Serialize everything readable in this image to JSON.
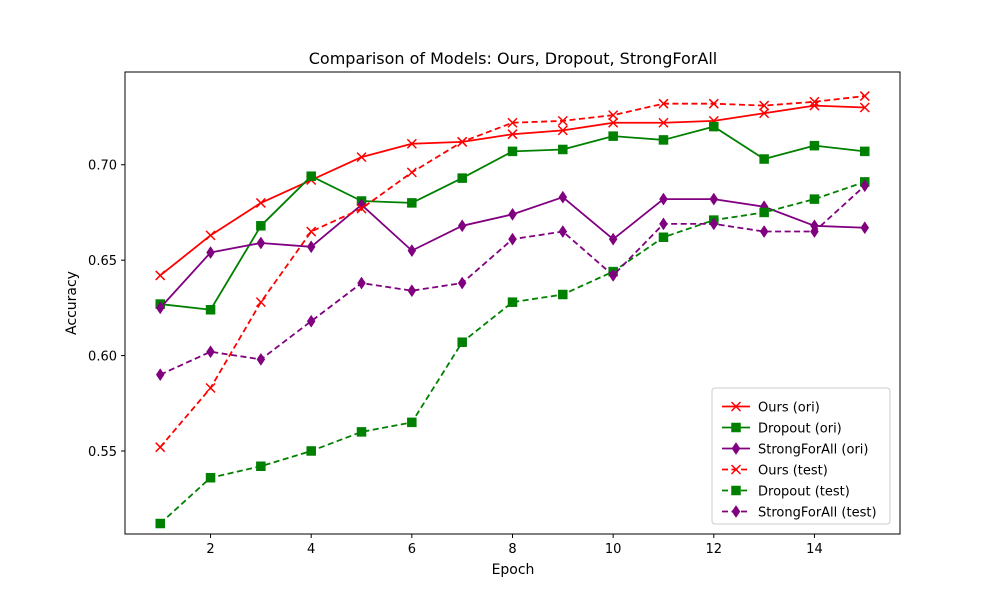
{
  "chart_data": {
    "type": "line",
    "title": "Comparison of Models:  Ours, Dropout, StrongForAll",
    "xlabel": "Epoch",
    "ylabel": "Accuracy",
    "xlim": [
      0.3,
      15.7
    ],
    "ylim": [
      0.5065,
      0.7486
    ],
    "xticks": [
      2,
      4,
      6,
      8,
      10,
      12,
      14
    ],
    "yticks": [
      0.55,
      0.6,
      0.65,
      0.7
    ],
    "ytick_labels": [
      "0.55",
      "0.60",
      "0.65",
      "0.70"
    ],
    "grid": false,
    "legend_position": "lower-right",
    "x": [
      1,
      2,
      3,
      4,
      5,
      6,
      7,
      8,
      9,
      10,
      11,
      12,
      13,
      14,
      15
    ],
    "series": [
      {
        "name": "Ours (ori)",
        "color": "#ff0000",
        "linestyle": "solid",
        "marker": "x",
        "values": [
          0.642,
          0.663,
          0.68,
          0.692,
          0.704,
          0.711,
          0.712,
          0.716,
          0.718,
          0.722,
          0.722,
          0.723,
          0.727,
          0.731,
          0.73
        ]
      },
      {
        "name": "Dropout (ori)",
        "color": "#008000",
        "linestyle": "solid",
        "marker": "square",
        "values": [
          0.627,
          0.624,
          0.668,
          0.694,
          0.681,
          0.68,
          0.693,
          0.707,
          0.708,
          0.715,
          0.713,
          0.72,
          0.703,
          0.71,
          0.707
        ]
      },
      {
        "name": "StrongForAll (ori)",
        "color": "#800080",
        "linestyle": "solid",
        "marker": "diamond",
        "values": [
          0.625,
          0.654,
          0.659,
          0.657,
          0.679,
          0.655,
          0.668,
          0.674,
          0.683,
          0.661,
          0.682,
          0.682,
          0.678,
          0.668,
          0.667
        ]
      },
      {
        "name": "Ours (test)",
        "color": "#ff0000",
        "linestyle": "dashed",
        "marker": "x",
        "values": [
          0.552,
          0.583,
          0.628,
          0.665,
          0.677,
          0.696,
          0.712,
          0.722,
          0.723,
          0.726,
          0.732,
          0.732,
          0.731,
          0.733,
          0.736
        ]
      },
      {
        "name": "Dropout (test)",
        "color": "#008000",
        "linestyle": "dashed",
        "marker": "square",
        "values": [
          0.512,
          0.536,
          0.542,
          0.55,
          0.56,
          0.565,
          0.607,
          0.628,
          0.632,
          0.644,
          0.662,
          0.671,
          0.675,
          0.682,
          0.691
        ]
      },
      {
        "name": "StrongForAll (test)",
        "color": "#800080",
        "linestyle": "dashed",
        "marker": "diamond",
        "values": [
          0.59,
          0.602,
          0.598,
          0.618,
          0.638,
          0.634,
          0.638,
          0.661,
          0.665,
          0.642,
          0.669,
          0.669,
          0.665,
          0.665,
          0.689
        ]
      }
    ]
  }
}
